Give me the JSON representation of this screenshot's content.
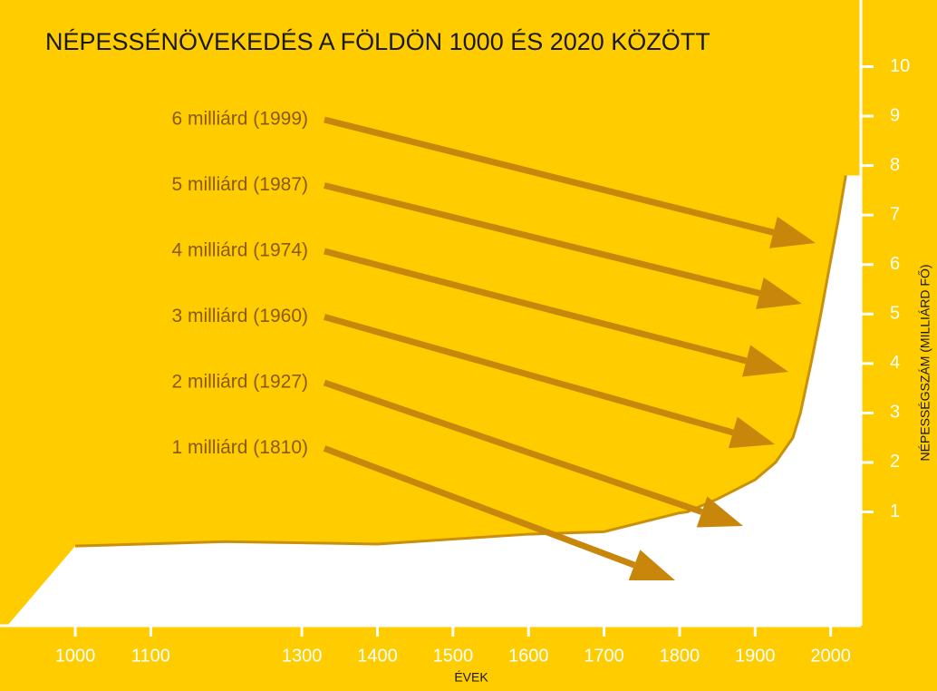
{
  "chart_data": {
    "type": "area",
    "title": "NÉPESSÉNÖVEKEDÉS A FÖLDÖN 1000 ÉS 2020 KÖZÖTT",
    "xlabel": "ÉVEK",
    "ylabel": "NÉPESSÉGSZÁM (MILLIÁRD FŐ)",
    "x": [
      1000,
      1200,
      1400,
      1500,
      1600,
      1700,
      1800,
      1810,
      1850,
      1900,
      1927,
      1950,
      1960,
      1974,
      1987,
      1999,
      2010,
      2020
    ],
    "values": [
      0.31,
      0.4,
      0.35,
      0.45,
      0.55,
      0.6,
      0.98,
      1,
      1.26,
      1.65,
      2,
      2.5,
      3,
      4,
      5,
      6,
      6.9,
      7.8
    ],
    "color": "#ffffff",
    "xlim": [
      910,
      2040
    ],
    "xticks": [
      1000,
      1100,
      1300,
      1400,
      1500,
      1600,
      1700,
      1800,
      1900,
      2000
    ],
    "ylim": [
      -1.3,
      11.2
    ],
    "yticks": [
      1,
      2,
      3,
      4,
      5,
      6,
      7,
      8,
      9,
      10
    ],
    "annotations": [
      "6 milliárd (1999)",
      "5 milliárd (1987)",
      "4 milliárd (1974)",
      "3 milliárd (1960)",
      "2 milliárd (1927)",
      "1 milliárd (1810)"
    ]
  }
}
